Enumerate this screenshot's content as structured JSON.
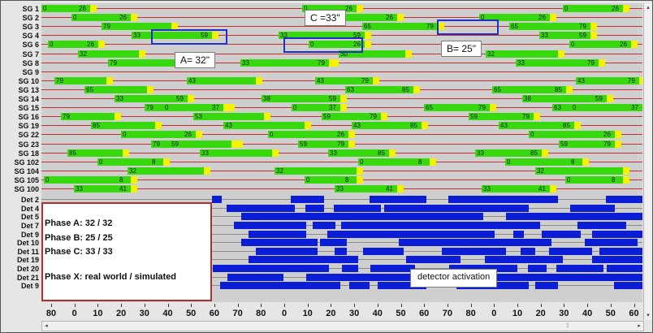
{
  "signal_groups": [
    {
      "label": "SG 1",
      "entries": [
        {
          "a": 0,
          "b": 26
        },
        {
          "a": 0,
          "b": 26
        },
        {
          "a": 0,
          "b": 26
        }
      ]
    },
    {
      "label": "SG 2",
      "entries": [
        {
          "a": 0,
          "b": 26
        },
        {
          "a": 0,
          "b": 26
        },
        {
          "a": 0,
          "b": 26
        }
      ]
    },
    {
      "label": "SG 3",
      "entries": [
        {
          "a": 79
        },
        {
          "a": 65,
          "b": 79
        },
        {
          "a": 65,
          "b": 79
        }
      ]
    },
    {
      "label": "SG 4",
      "entries": [
        {
          "a": 33,
          "b": 59
        },
        {
          "a": 33,
          "b": 59
        },
        {
          "a": 33,
          "b": 59
        }
      ]
    },
    {
      "label": "SG 6",
      "entries": [
        {
          "a": 0,
          "b": 26
        },
        {
          "a": 0,
          "b": 26
        },
        {
          "a": 0,
          "b": 26
        }
      ]
    },
    {
      "label": "SG 7",
      "entries": [
        {
          "a": 32
        },
        {
          "a": 30
        },
        {
          "a": 32
        }
      ]
    },
    {
      "label": "SG 8",
      "entries": [
        {
          "a": 79
        },
        {
          "a": 33,
          "b": 79
        },
        {
          "a": 33,
          "b": 79
        },
        {
          "a": 33,
          "b": 79
        }
      ]
    },
    {
      "label": "SG 9",
      "entries": []
    },
    {
      "label": "SG 10",
      "entries": [
        {
          "a": 79
        },
        {
          "a": 43,
          "b": 79
        },
        {
          "a": 43,
          "b": 79
        },
        {
          "a": 43
        }
      ]
    },
    {
      "label": "SG 13",
      "entries": [
        {
          "a": 65
        },
        {
          "a": 63,
          "b": 85
        },
        {
          "a": 65,
          "b": 85
        }
      ]
    },
    {
      "label": "SG 14",
      "entries": [
        {
          "a": 33,
          "b": 59
        },
        {
          "a": 38,
          "b": 59
        },
        {
          "a": 38,
          "b": 59
        }
      ]
    },
    {
      "label": "SG 15",
      "entries": [
        {
          "a": 79
        },
        {
          "a": 0,
          "b": 37
        },
        {
          "a": 63,
          "b": 79
        },
        {
          "a": 0,
          "b": 37
        },
        {
          "a": 65,
          "b": 79
        },
        {
          "a": 0,
          "b": 37
        }
      ]
    },
    {
      "label": "SG 16",
      "entries": [
        {
          "a": 79
        },
        {
          "a": 59,
          "b": 79
        },
        {
          "a": 59,
          "b": 79
        },
        {
          "a": 53
        }
      ]
    },
    {
      "label": "SG 19",
      "entries": [
        {
          "a": 85
        },
        {
          "a": 43,
          "b": 85
        },
        {
          "a": 43,
          "b": 85
        },
        {
          "a": 43
        }
      ]
    },
    {
      "label": "SG 22",
      "entries": [
        {
          "a": 0,
          "b": 26
        },
        {
          "a": 0,
          "b": 26
        },
        {
          "a": 0,
          "b": 26
        }
      ]
    },
    {
      "label": "SG 23",
      "entries": [
        {
          "a": 79
        },
        {
          "a": 59,
          "b": 79
        },
        {
          "a": 59,
          "b": 79
        },
        {
          "a": 59
        }
      ]
    },
    {
      "label": "SG 18",
      "entries": [
        {
          "a": 85
        },
        {
          "a": 33,
          "b": 85
        },
        {
          "a": 33,
          "b": 85
        },
        {
          "a": 33
        }
      ]
    },
    {
      "label": "SG 102",
      "entries": [
        {
          "a": 0,
          "b": 8
        },
        {
          "a": 0,
          "b": 8
        },
        {
          "a": 0,
          "b": 8
        }
      ]
    },
    {
      "label": "SG 104",
      "entries": [
        {
          "a": 32
        },
        {
          "a": 32
        },
        {
          "a": 32
        }
      ]
    },
    {
      "label": "SG 105",
      "entries": [
        {
          "a": 0,
          "b": 8
        },
        {
          "a": 0,
          "b": 8
        },
        {
          "a": 0,
          "b": 8
        }
      ]
    },
    {
      "label": "SG 100",
      "entries": [
        {
          "a": 33,
          "b": 41
        },
        {
          "a": 33,
          "b": 41
        },
        {
          "a": 33,
          "b": 41
        }
      ]
    }
  ],
  "detectors": [
    "Det 2",
    "Det 4",
    "Det 5",
    "Det 7",
    "Det 9",
    "Det 10",
    "Det 11",
    "Det 19",
    "Det 20",
    "Det 21",
    "Det 9"
  ],
  "annotations": {
    "a": "A= 32\"",
    "b": "B= 25\"",
    "c": "C =33\"",
    "detector": "detector activation"
  },
  "legend": {
    "line1": "Phase A: 32 / 32",
    "line2": "Phase B: 25 / 25",
    "line3": "Phase C: 33 / 33",
    "line4": "Phase X: real world / simulated"
  },
  "axis": {
    "labels": [
      "80",
      "0",
      "10",
      "20",
      "30",
      "40",
      "50",
      "60",
      "70",
      "80",
      "0",
      "10",
      "20",
      "30",
      "40",
      "50",
      "60",
      "70",
      "80",
      "0",
      "10",
      "20",
      "30",
      "40",
      "50",
      "60"
    ]
  },
  "scroll_glyphs": {
    "left": "◂",
    "right": "▸",
    "up": "▴",
    "down": "▾",
    "thumb": "⦙⦙"
  },
  "colors": {
    "green": "#37d90e",
    "yellow": "#f3f300",
    "detector": "#0b1ed6",
    "red_line": "#c23030",
    "highlight_box": "#1f2fc8",
    "legend_border": "#b03030"
  }
}
